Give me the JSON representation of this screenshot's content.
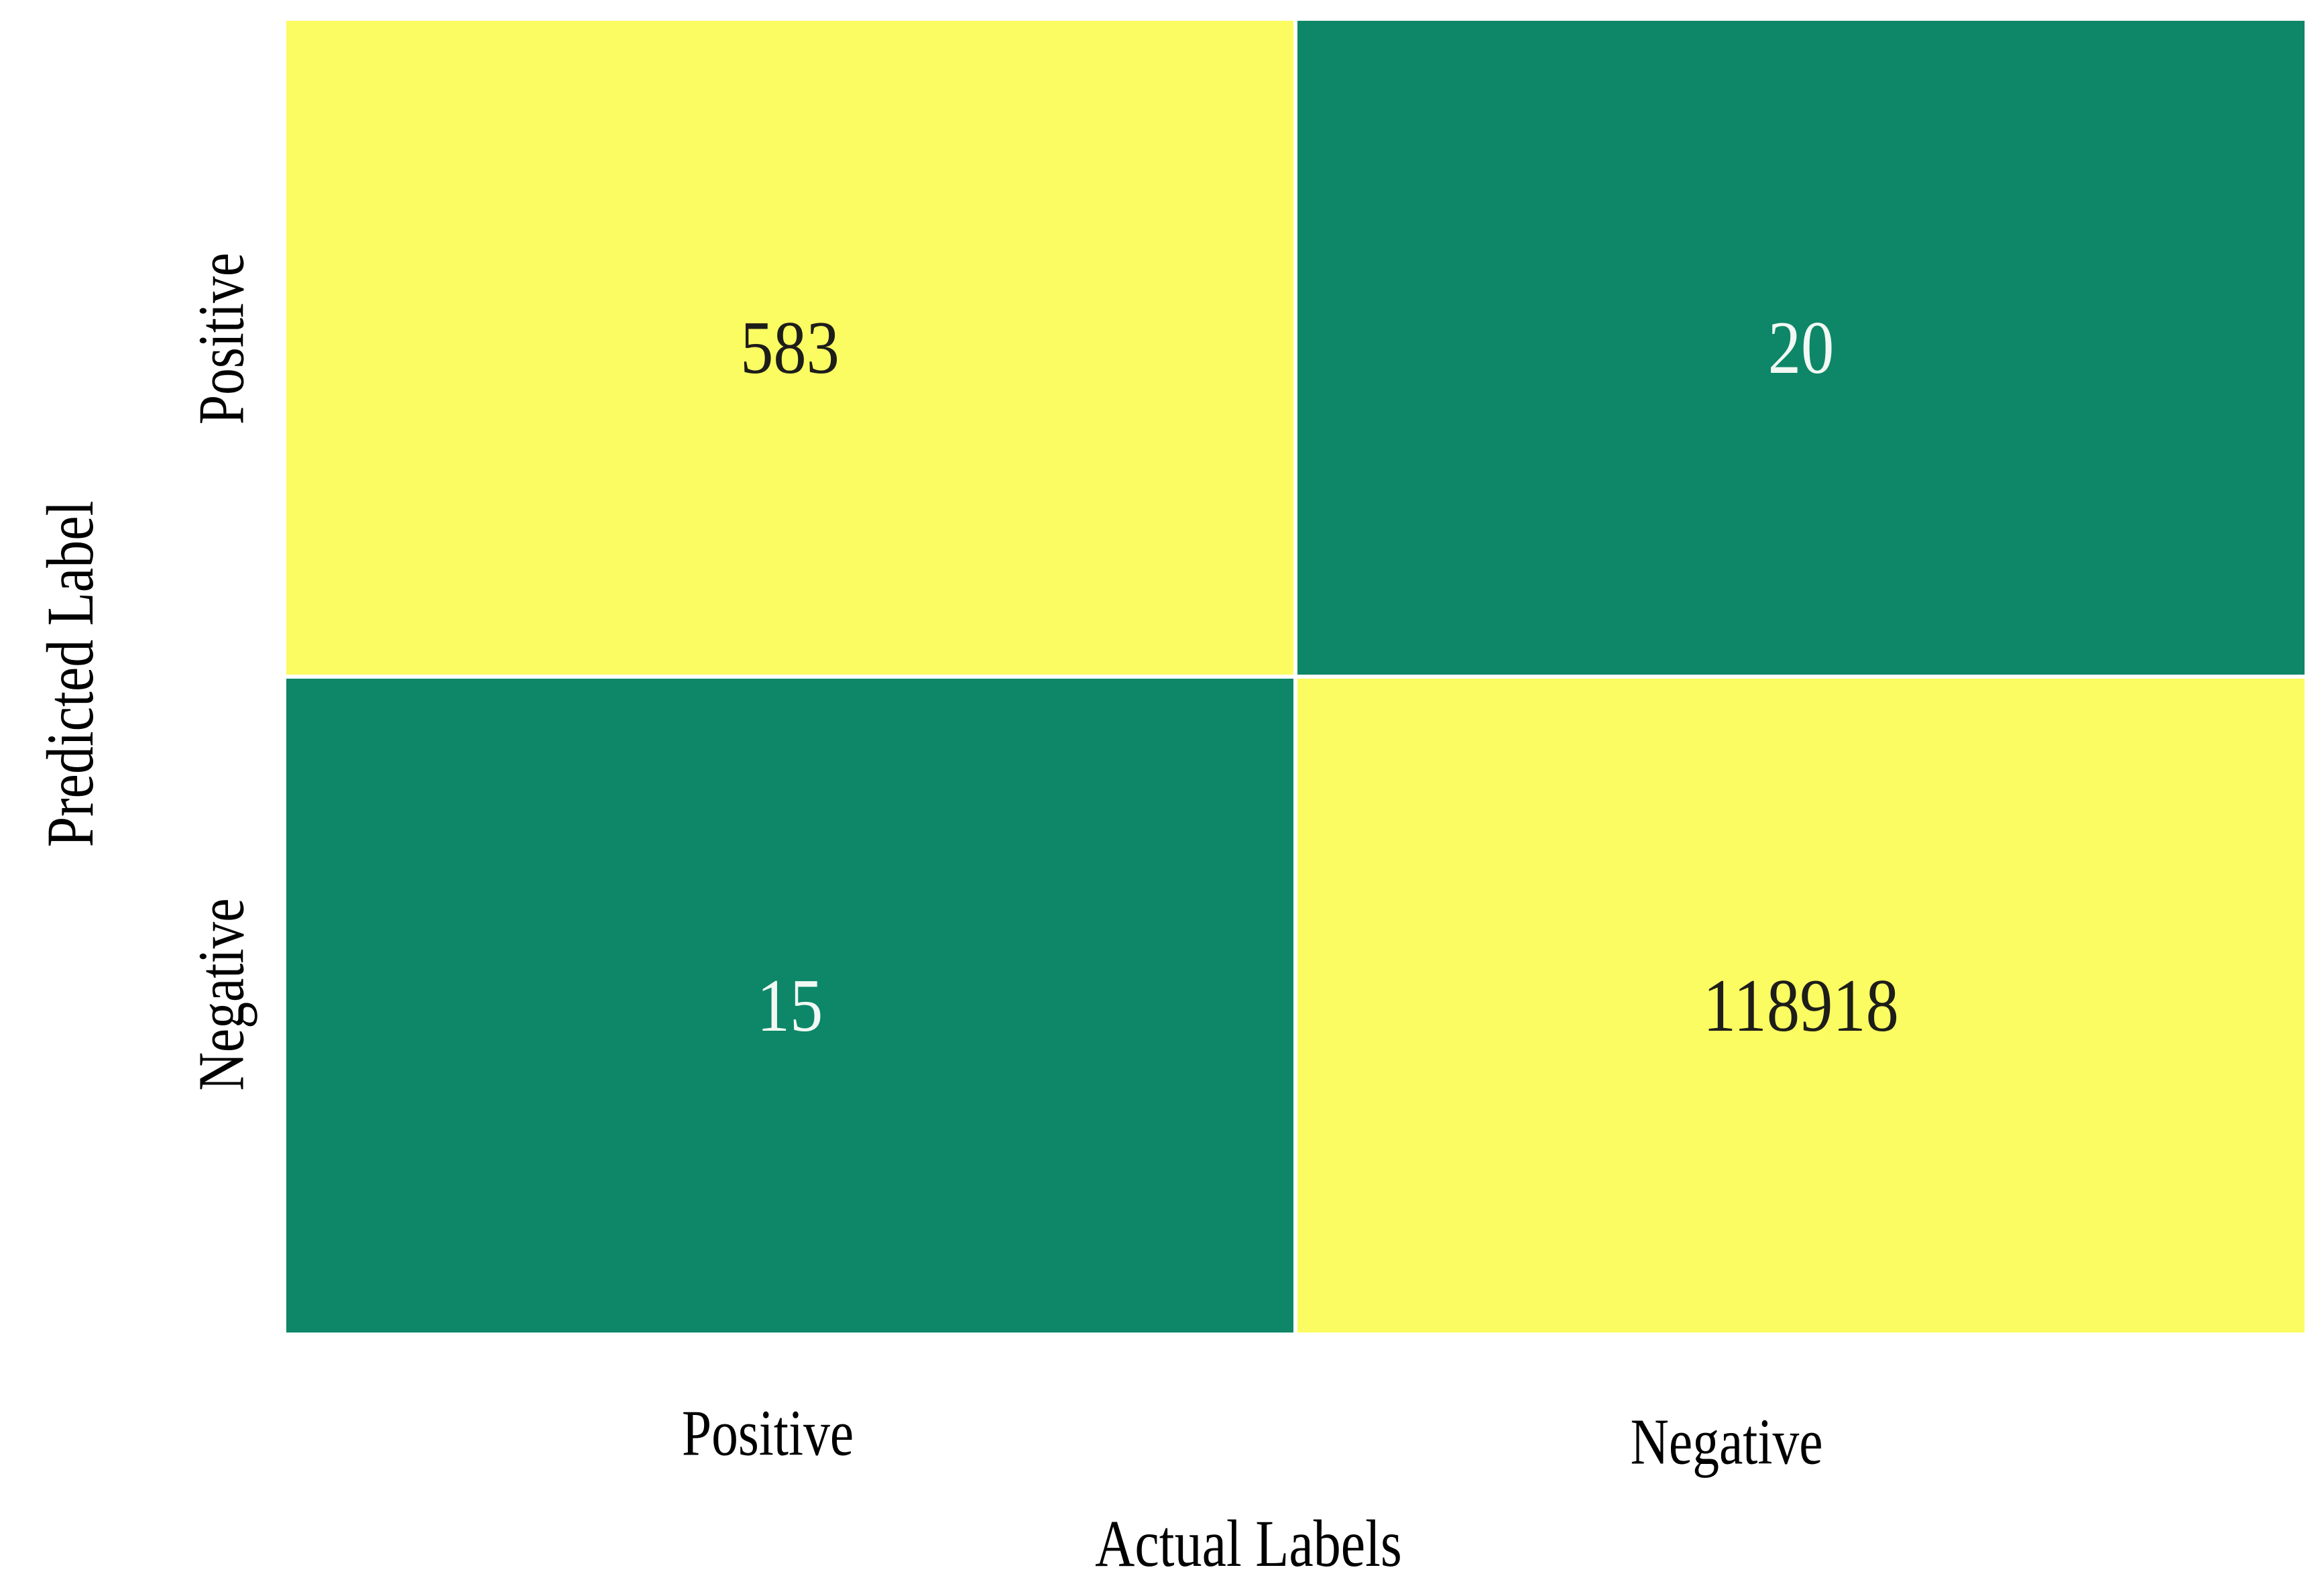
{
  "figure": {
    "kind": "confusion-matrix",
    "x_axis_title": "Actual Labels",
    "y_axis_title": "Predicted Label",
    "x_tick_labels": [
      "Positive",
      "Negative"
    ],
    "y_tick_labels": [
      "Positive",
      "Negative"
    ]
  },
  "colors": {
    "cell_high": "#fbfc61",
    "cell_low": "#0d8768",
    "text_on_high": "#1d1d1a",
    "text_on_low": "#f2f8f3",
    "gridline": "#ffffff",
    "axis_text": "#000000"
  },
  "chart_data": {
    "type": "heatmap",
    "title": "",
    "xlabel": "Actual Labels",
    "ylabel": "Predicted Label",
    "x_categories": [
      "Positive",
      "Negative"
    ],
    "y_categories": [
      "Positive",
      "Negative"
    ],
    "rows": [
      {
        "y": "Positive",
        "values": [
          583,
          20
        ]
      },
      {
        "y": "Negative",
        "values": [
          15,
          118918
        ]
      }
    ],
    "cells": [
      {
        "row": "Positive",
        "col": "Positive",
        "value": "583",
        "bg": "#fbfc61",
        "fg": "#1d1d1a"
      },
      {
        "row": "Positive",
        "col": "Negative",
        "value": "20",
        "bg": "#0d8768",
        "fg": "#f2f8f3"
      },
      {
        "row": "Negative",
        "col": "Positive",
        "value": "15",
        "bg": "#0d8768",
        "fg": "#f2f8f3"
      },
      {
        "row": "Negative",
        "col": "Negative",
        "value": "118918",
        "bg": "#fbfc61",
        "fg": "#1d1d1a"
      }
    ],
    "legend": "none",
    "grid": "white-cell-separators",
    "colormap_hint": "summer (green=low, yellow=high)"
  }
}
